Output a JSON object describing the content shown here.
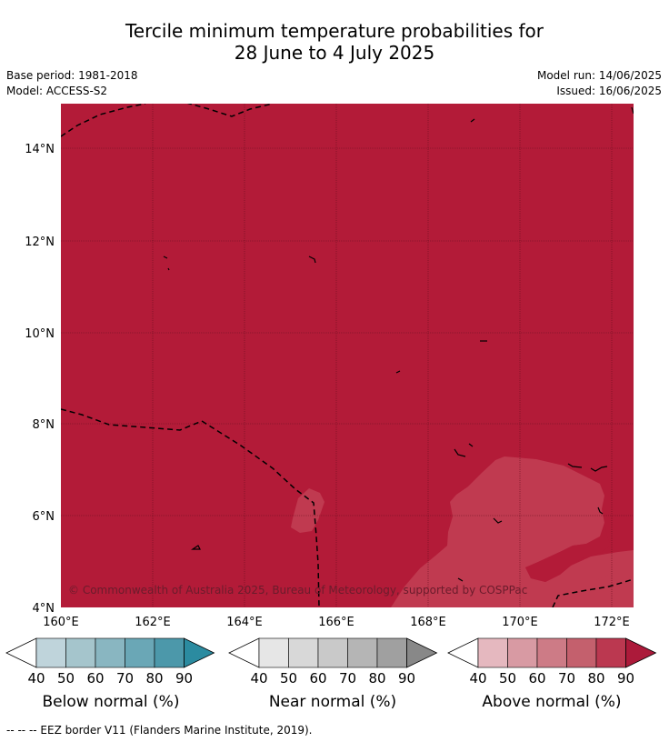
{
  "title": {
    "line1": "Tercile minimum temperature probabilities for",
    "line2": "28 June to 4 July 2025"
  },
  "meta": {
    "base_period": "Base period: 1981-2018",
    "model": "Model: ACCESS-S2",
    "model_run": "Model run: 14/06/2025",
    "issued": "Issued: 16/06/2025"
  },
  "map": {
    "colors": {
      "above_80_90": "#b31b38",
      "above_70_80": "#c03a50",
      "grid": "#6a1020",
      "border": "#000000"
    },
    "lat_labels": [
      "14°N",
      "12°N",
      "10°N",
      "8°N",
      "6°N",
      "4°N"
    ],
    "lon_labels": [
      "160°E",
      "162°E",
      "164°E",
      "166°E",
      "168°E",
      "170°E",
      "172°E"
    ],
    "copyright": "© Commonwealth of Australia 2025, Bureau of Meteorology, supported by COSPPac"
  },
  "legends": [
    {
      "name": "Below normal (%)",
      "ticks": [
        "40",
        "50",
        "60",
        "70",
        "80",
        "90"
      ],
      "colors": [
        "#bfd4db",
        "#a5c5cc",
        "#89b6c1",
        "#6aa7b6",
        "#4c98aa",
        "#2b8ba0"
      ]
    },
    {
      "name": "Near normal (%)",
      "ticks": [
        "40",
        "50",
        "60",
        "70",
        "80",
        "90"
      ],
      "colors": [
        "#e6e6e6",
        "#d8d8d8",
        "#c9c9c9",
        "#b5b5b5",
        "#a0a0a0",
        "#888888"
      ]
    },
    {
      "name": "Above normal (%)",
      "ticks": [
        "40",
        "50",
        "60",
        "70",
        "80",
        "90"
      ],
      "colors": [
        "#e5b8bf",
        "#d89aa3",
        "#cd7b86",
        "#c4606d",
        "#bb3850",
        "#ac1a3a"
      ]
    }
  ],
  "footnote": "--  --  -- EEZ border V11 (Flanders Marine Institute, 2019)."
}
